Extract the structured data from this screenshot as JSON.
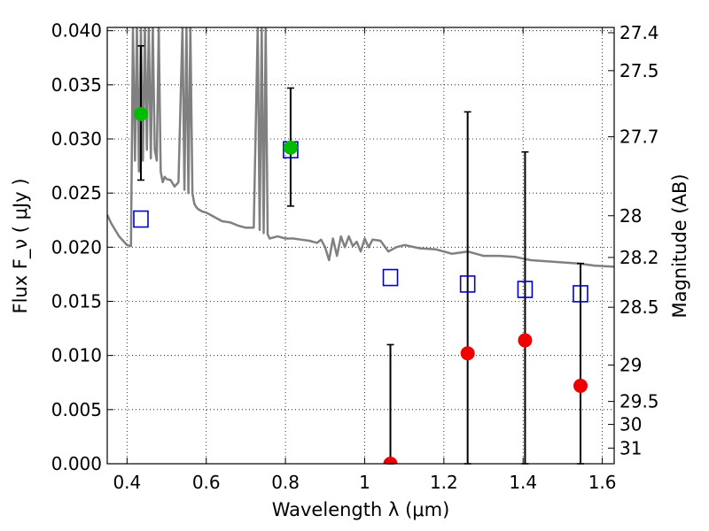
{
  "chart_data": {
    "type": "scatter",
    "xlabel": "Wavelength  λ (μm)",
    "ylabel": "Flux  F_ν  ( μJy )",
    "ylabel_right": "Magnitude (AB)",
    "xlim": [
      0.35,
      1.63
    ],
    "ylim": [
      0.0,
      0.0403
    ],
    "grid": true,
    "x_ticks": [
      0.4,
      0.6,
      0.8,
      1.0,
      1.2,
      1.4,
      1.6
    ],
    "x_tick_labels": [
      "0.4",
      "0.6",
      "0.8",
      "1",
      "1.2",
      "1.4",
      "1.6"
    ],
    "y_ticks": [
      0.0,
      0.005,
      0.01,
      0.015,
      0.02,
      0.025,
      0.03,
      0.035,
      0.04
    ],
    "y_tick_labels": [
      "0.000",
      "0.005",
      "0.010",
      "0.015",
      "0.020",
      "0.025",
      "0.030",
      "0.035",
      "0.040"
    ],
    "right_axis_ticks": [
      {
        "label": "27.4",
        "value": 27.4
      },
      {
        "label": "27.5",
        "value": 27.5
      },
      {
        "label": "27.7",
        "value": 27.7
      },
      {
        "label": "28",
        "value": 28.0
      },
      {
        "label": "28.2",
        "value": 28.2
      },
      {
        "label": "28.5",
        "value": 28.5
      },
      {
        "label": "29",
        "value": 29.0
      },
      {
        "label": "29.5",
        "value": 29.5
      },
      {
        "label": "30",
        "value": 30.0
      },
      {
        "label": "31",
        "value": 31.0
      }
    ],
    "series": [
      {
        "kind": "line",
        "color": "#808080",
        "x": [
          0.35,
          0.36,
          0.38,
          0.4,
          0.41,
          0.415,
          0.42,
          0.425,
          0.43,
          0.435,
          0.44,
          0.445,
          0.45,
          0.455,
          0.46,
          0.465,
          0.47,
          0.475,
          0.48,
          0.485,
          0.49,
          0.495,
          0.5,
          0.51,
          0.52,
          0.53,
          0.54,
          0.545,
          0.55,
          0.555,
          0.56,
          0.565,
          0.57,
          0.575,
          0.58,
          0.59,
          0.6,
          0.62,
          0.64,
          0.66,
          0.68,
          0.7,
          0.72,
          0.73,
          0.735,
          0.74,
          0.745,
          0.75,
          0.755,
          0.76,
          0.78,
          0.8,
          0.82,
          0.84,
          0.86,
          0.88,
          0.89,
          0.9,
          0.91,
          0.92,
          0.93,
          0.94,
          0.95,
          0.96,
          0.97,
          0.98,
          0.99,
          1.0,
          1.01,
          1.02,
          1.04,
          1.06,
          1.08,
          1.1,
          1.14,
          1.18,
          1.22,
          1.26,
          1.3,
          1.34,
          1.38,
          1.42,
          1.46,
          1.5,
          1.54,
          1.58,
          1.63
        ],
        "y": [
          0.023,
          0.0222,
          0.021,
          0.0202,
          0.0201,
          0.0403,
          0.028,
          0.0403,
          0.027,
          0.0403,
          0.028,
          0.0403,
          0.029,
          0.0403,
          0.0282,
          0.0403,
          0.029,
          0.028,
          0.0403,
          0.027,
          0.026,
          0.0265,
          0.0263,
          0.0262,
          0.0256,
          0.026,
          0.0403,
          0.0253,
          0.0403,
          0.025,
          0.0403,
          0.025,
          0.024,
          0.0237,
          0.0235,
          0.0233,
          0.0232,
          0.0228,
          0.0224,
          0.0223,
          0.022,
          0.0218,
          0.0218,
          0.0403,
          0.0216,
          0.0403,
          0.0213,
          0.0403,
          0.0212,
          0.0208,
          0.021,
          0.0208,
          0.0208,
          0.0207,
          0.0206,
          0.0204,
          0.0207,
          0.02,
          0.0188,
          0.0208,
          0.0192,
          0.021,
          0.02,
          0.021,
          0.0201,
          0.0205,
          0.0196,
          0.0208,
          0.02,
          0.0207,
          0.0206,
          0.0196,
          0.02,
          0.0202,
          0.0199,
          0.0198,
          0.0194,
          0.0196,
          0.0192,
          0.0192,
          0.0191,
          0.0188,
          0.0187,
          0.0186,
          0.0185,
          0.0183,
          0.0182
        ]
      },
      {
        "kind": "model_band",
        "marker": "open-square",
        "color": "#0000cc",
        "x": [
          0.435,
          0.813,
          1.065,
          1.26,
          1.405,
          1.545
        ],
        "y": [
          0.0226,
          0.029,
          0.0172,
          0.0166,
          0.0161,
          0.0157
        ]
      },
      {
        "kind": "observed",
        "marker": "filled-circle",
        "color": "#00bb00",
        "x": [
          0.435,
          0.813
        ],
        "y": [
          0.0323,
          0.0292
        ],
        "err": [
          [
            0.0262,
            0.0386
          ],
          [
            0.0238,
            0.0347
          ]
        ]
      },
      {
        "kind": "observed",
        "marker": "filled-circle",
        "color": "#ee0000",
        "x": [
          1.065,
          1.26,
          1.405,
          1.545
        ],
        "y": [
          0.0,
          0.0102,
          0.0114,
          0.0072
        ],
        "err": [
          [
            0.0,
            0.011
          ],
          [
            0.0,
            0.0325
          ],
          [
            0.0,
            0.0288
          ],
          [
            0.0,
            0.0185
          ]
        ]
      }
    ]
  }
}
